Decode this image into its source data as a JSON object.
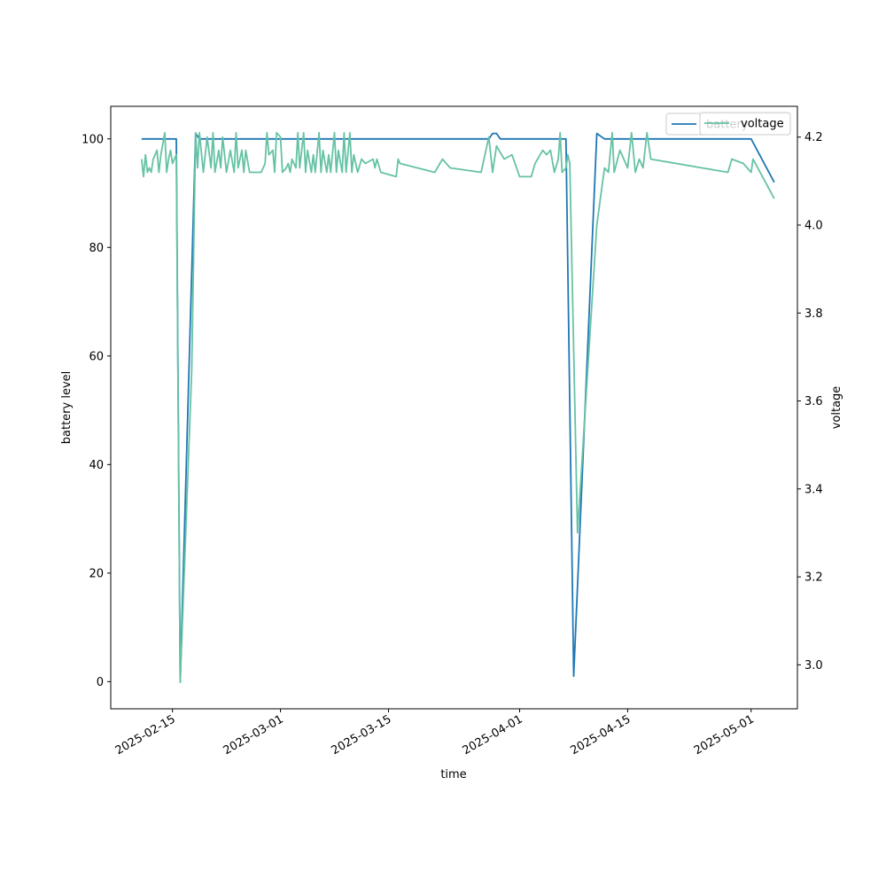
{
  "chart_data": {
    "type": "line",
    "xlabel": "time",
    "ylabel_left": "battery level",
    "ylabel_right": "voltage",
    "ylim_left": [
      -5,
      106
    ],
    "ylim_right": [
      2.9,
      4.27
    ],
    "xlim": [
      "2025-02-07",
      "2025-05-07"
    ],
    "yticks_left": [
      0,
      20,
      40,
      60,
      80,
      100
    ],
    "yticks_right": [
      3.0,
      3.2,
      3.4,
      3.6,
      3.8,
      4.0,
      4.2
    ],
    "xticks": [
      "2025-02-15",
      "2025-03-01",
      "2025-03-15",
      "2025-04-01",
      "2025-04-15",
      "2025-05-01"
    ],
    "grid": false,
    "legend": {
      "placement": "top-right",
      "entries": [
        "battery",
        "voltage"
      ]
    },
    "series": [
      {
        "name": "battery",
        "axis": "left",
        "color": "#1f77b4",
        "points": [
          [
            "2025-02-11",
            100
          ],
          [
            "2025-02-15",
            100
          ],
          [
            "2025-02-15T12:00",
            100
          ],
          [
            "2025-02-16",
            0
          ],
          [
            "2025-02-18",
            101
          ],
          [
            "2025-02-18T12:00",
            100
          ],
          [
            "2025-02-25",
            100
          ],
          [
            "2025-03-01",
            100
          ],
          [
            "2025-03-15",
            100
          ],
          [
            "2025-03-28",
            100
          ],
          [
            "2025-03-28T12:00",
            101
          ],
          [
            "2025-03-29",
            101
          ],
          [
            "2025-03-29T12:00",
            100
          ],
          [
            "2025-04-01",
            100
          ],
          [
            "2025-04-06",
            100
          ],
          [
            "2025-04-07",
            100
          ],
          [
            "2025-04-08",
            1
          ],
          [
            "2025-04-11",
            101
          ],
          [
            "2025-04-12",
            100
          ],
          [
            "2025-04-15",
            100
          ],
          [
            "2025-05-01",
            100
          ],
          [
            "2025-05-04",
            92
          ]
        ]
      },
      {
        "name": "voltage",
        "axis": "right",
        "color": "#66c2a5",
        "points": [
          [
            "2025-02-11",
            4.15
          ],
          [
            "2025-02-11T06:00",
            4.11
          ],
          [
            "2025-02-11T12:00",
            4.16
          ],
          [
            "2025-02-11T18:00",
            4.12
          ],
          [
            "2025-02-12",
            4.13
          ],
          [
            "2025-02-12T06:00",
            4.12
          ],
          [
            "2025-02-12T12:00",
            4.15
          ],
          [
            "2025-02-13",
            4.17
          ],
          [
            "2025-02-13T06:00",
            4.12
          ],
          [
            "2025-02-13T12:00",
            4.16
          ],
          [
            "2025-02-14",
            4.21
          ],
          [
            "2025-02-14T06:00",
            4.12
          ],
          [
            "2025-02-14T12:00",
            4.15
          ],
          [
            "2025-02-14T18:00",
            4.17
          ],
          [
            "2025-02-15",
            4.14
          ],
          [
            "2025-02-15T12:00",
            4.16
          ],
          [
            "2025-02-16",
            2.96
          ],
          [
            "2025-02-17T12:00",
            3.67
          ],
          [
            "2025-02-18",
            4.21
          ],
          [
            "2025-02-18T06:00",
            4.13
          ],
          [
            "2025-02-18T12:00",
            4.21
          ],
          [
            "2025-02-19",
            4.12
          ],
          [
            "2025-02-19T12:00",
            4.2
          ],
          [
            "2025-02-20",
            4.13
          ],
          [
            "2025-02-20T06:00",
            4.21
          ],
          [
            "2025-02-20T12:00",
            4.12
          ],
          [
            "2025-02-21",
            4.17
          ],
          [
            "2025-02-21T06:00",
            4.13
          ],
          [
            "2025-02-21T12:00",
            4.2
          ],
          [
            "2025-02-22",
            4.12
          ],
          [
            "2025-02-22T12:00",
            4.17
          ],
          [
            "2025-02-23",
            4.12
          ],
          [
            "2025-02-23T06:00",
            4.21
          ],
          [
            "2025-02-23T12:00",
            4.13
          ],
          [
            "2025-02-24",
            4.17
          ],
          [
            "2025-02-24T06:00",
            4.12
          ],
          [
            "2025-02-24T12:00",
            4.17
          ],
          [
            "2025-02-25",
            4.12
          ],
          [
            "2025-02-26T12:00",
            4.12
          ],
          [
            "2025-02-27",
            4.14
          ],
          [
            "2025-02-27T06:00",
            4.21
          ],
          [
            "2025-02-27T12:00",
            4.16
          ],
          [
            "2025-02-28",
            4.17
          ],
          [
            "2025-02-28T06:00",
            4.12
          ],
          [
            "2025-02-28T12:00",
            4.21
          ],
          [
            "2025-03-01",
            4.2
          ],
          [
            "2025-03-01T06:00",
            4.12
          ],
          [
            "2025-03-01T18:00",
            4.13
          ],
          [
            "2025-03-02",
            4.14
          ],
          [
            "2025-03-02T06:00",
            4.12
          ],
          [
            "2025-03-02T12:00",
            4.15
          ],
          [
            "2025-03-03",
            4.13
          ],
          [
            "2025-03-03T06:00",
            4.21
          ],
          [
            "2025-03-03T12:00",
            4.13
          ],
          [
            "2025-03-04",
            4.21
          ],
          [
            "2025-03-04T06:00",
            4.12
          ],
          [
            "2025-03-04T12:00",
            4.17
          ],
          [
            "2025-03-05",
            4.12
          ],
          [
            "2025-03-05T06:00",
            4.16
          ],
          [
            "2025-03-05T12:00",
            4.12
          ],
          [
            "2025-03-06",
            4.21
          ],
          [
            "2025-03-06T06:00",
            4.12
          ],
          [
            "2025-03-06T12:00",
            4.17
          ],
          [
            "2025-03-07",
            4.12
          ],
          [
            "2025-03-07T06:00",
            4.16
          ],
          [
            "2025-03-07T12:00",
            4.12
          ],
          [
            "2025-03-08",
            4.21
          ],
          [
            "2025-03-08T06:00",
            4.12
          ],
          [
            "2025-03-08T12:00",
            4.17
          ],
          [
            "2025-03-09",
            4.12
          ],
          [
            "2025-03-09T06:00",
            4.21
          ],
          [
            "2025-03-09T12:00",
            4.12
          ],
          [
            "2025-03-10",
            4.21
          ],
          [
            "2025-03-10T06:00",
            4.12
          ],
          [
            "2025-03-10T12:00",
            4.16
          ],
          [
            "2025-03-11",
            4.12
          ],
          [
            "2025-03-11T12:00",
            4.15
          ],
          [
            "2025-03-12",
            4.14
          ],
          [
            "2025-03-13",
            4.15
          ],
          [
            "2025-03-13T06:00",
            4.13
          ],
          [
            "2025-03-13T12:00",
            4.15
          ],
          [
            "2025-03-14",
            4.12
          ],
          [
            "2025-03-16",
            4.11
          ],
          [
            "2025-03-16T06:00",
            4.15
          ],
          [
            "2025-03-16T12:00",
            4.14
          ],
          [
            "2025-03-21",
            4.12
          ],
          [
            "2025-03-22",
            4.15
          ],
          [
            "2025-03-23",
            4.13
          ],
          [
            "2025-03-27",
            4.12
          ],
          [
            "2025-03-28",
            4.2
          ],
          [
            "2025-03-28T12:00",
            4.12
          ],
          [
            "2025-03-29",
            4.18
          ],
          [
            "2025-03-30",
            4.15
          ],
          [
            "2025-03-31",
            4.16
          ],
          [
            "2025-04-01",
            4.11
          ],
          [
            "2025-04-02T12:00",
            4.11
          ],
          [
            "2025-04-03",
            4.14
          ],
          [
            "2025-04-04",
            4.17
          ],
          [
            "2025-04-04T12:00",
            4.16
          ],
          [
            "2025-04-05",
            4.17
          ],
          [
            "2025-04-05T12:00",
            4.12
          ],
          [
            "2025-04-06",
            4.15
          ],
          [
            "2025-04-06T06:00",
            4.21
          ],
          [
            "2025-04-06T12:00",
            4.12
          ],
          [
            "2025-04-07",
            4.13
          ],
          [
            "2025-04-07T06:00",
            4.16
          ],
          [
            "2025-04-07T12:00",
            4.14
          ],
          [
            "2025-04-08T12:00",
            3.3
          ],
          [
            "2025-04-11",
            4.0
          ],
          [
            "2025-04-12",
            4.13
          ],
          [
            "2025-04-12T12:00",
            4.12
          ],
          [
            "2025-04-13",
            4.21
          ],
          [
            "2025-04-13T06:00",
            4.12
          ],
          [
            "2025-04-14",
            4.17
          ],
          [
            "2025-04-15",
            4.13
          ],
          [
            "2025-04-15T12:00",
            4.21
          ],
          [
            "2025-04-16",
            4.12
          ],
          [
            "2025-04-16T12:00",
            4.15
          ],
          [
            "2025-04-17",
            4.13
          ],
          [
            "2025-04-17T12:00",
            4.21
          ],
          [
            "2025-04-18",
            4.15
          ],
          [
            "2025-04-28",
            4.12
          ],
          [
            "2025-04-28T12:00",
            4.15
          ],
          [
            "2025-04-30",
            4.14
          ],
          [
            "2025-05-01",
            4.12
          ],
          [
            "2025-05-01T06:00",
            4.15
          ],
          [
            "2025-05-04",
            4.06
          ]
        ]
      }
    ]
  }
}
